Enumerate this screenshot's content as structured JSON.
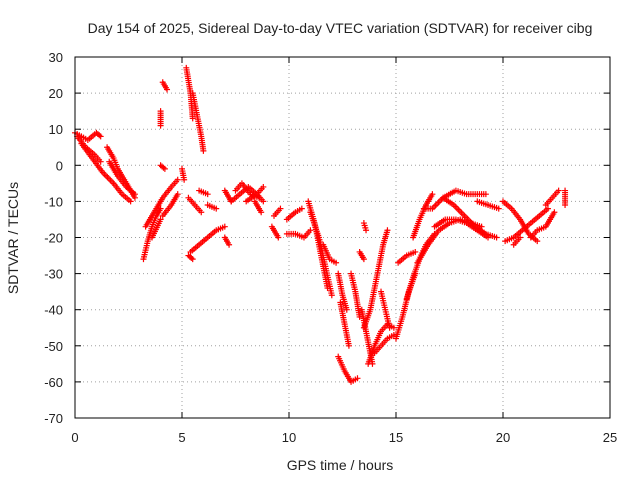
{
  "chart_data": {
    "type": "scatter",
    "title": "Day 154 of 2025, Sidereal Day-to-day VTEC variation (SDTVAR) for receiver cibg",
    "xlabel": "GPS time / hours",
    "ylabel": "SDTVAR / TECUs",
    "xlim": [
      0,
      25
    ],
    "ylim": [
      -70,
      30
    ],
    "xticks": [
      0,
      5,
      10,
      15,
      20,
      25
    ],
    "yticks": [
      30,
      20,
      10,
      0,
      -10,
      -20,
      -30,
      -40,
      -50,
      -60,
      -70
    ],
    "xtick_labels": [
      "0",
      "5",
      "10",
      "15",
      "20",
      "25"
    ],
    "ytick_labels": [
      "30",
      "20",
      "10",
      "0",
      "-10",
      "-20",
      "-30",
      "-40",
      "-50",
      "-60",
      "-70"
    ],
    "grid": true,
    "marker": "+",
    "color": "#ff0000",
    "segments": [
      [
        [
          0.0,
          9
        ],
        [
          0.3,
          8
        ],
        [
          0.6,
          7
        ],
        [
          1.0,
          9
        ],
        [
          1.2,
          8
        ]
      ],
      [
        [
          0.1,
          8
        ],
        [
          0.5,
          5
        ],
        [
          0.9,
          3
        ],
        [
          1.2,
          1
        ]
      ],
      [
        [
          0.3,
          6
        ],
        [
          0.8,
          2
        ],
        [
          1.3,
          -2
        ],
        [
          1.8,
          -5
        ],
        [
          2.2,
          -8
        ],
        [
          2.6,
          -10
        ]
      ],
      [
        [
          1.5,
          5
        ],
        [
          1.8,
          2
        ],
        [
          2.0,
          -1
        ],
        [
          2.3,
          -4
        ],
        [
          2.6,
          -7
        ],
        [
          2.8,
          -9
        ]
      ],
      [
        [
          1.6,
          1
        ],
        [
          2.0,
          -3
        ],
        [
          2.4,
          -6
        ],
        [
          2.8,
          -8
        ]
      ],
      [
        [
          3.2,
          -26
        ],
        [
          3.4,
          -21
        ],
        [
          3.6,
          -17
        ],
        [
          3.8,
          -14
        ],
        [
          4.0,
          -12
        ]
      ],
      [
        [
          3.3,
          -17
        ],
        [
          3.7,
          -13
        ],
        [
          4.1,
          -9
        ],
        [
          4.5,
          -6
        ],
        [
          4.8,
          -4
        ]
      ],
      [
        [
          3.6,
          -20
        ],
        [
          4.0,
          -15
        ]
      ],
      [
        [
          4.0,
          15
        ],
        [
          4.0,
          11
        ]
      ],
      [
        [
          4.1,
          23
        ],
        [
          4.3,
          21
        ]
      ],
      [
        [
          4.0,
          0
        ],
        [
          4.2,
          -1
        ]
      ],
      [
        [
          4.1,
          -14
        ],
        [
          4.5,
          -11
        ],
        [
          4.8,
          -8
        ]
      ],
      [
        [
          5.0,
          -1
        ],
        [
          5.1,
          -4
        ]
      ],
      [
        [
          5.2,
          27
        ],
        [
          5.4,
          20
        ],
        [
          5.5,
          13
        ]
      ],
      [
        [
          5.5,
          20
        ],
        [
          5.7,
          14
        ],
        [
          5.9,
          8
        ],
        [
          6.0,
          4
        ]
      ],
      [
        [
          5.3,
          -9
        ],
        [
          5.6,
          -11
        ],
        [
          5.9,
          -13
        ]
      ],
      [
        [
          5.3,
          -25
        ],
        [
          5.5,
          -26
        ]
      ],
      [
        [
          5.4,
          -24
        ],
        [
          5.8,
          -22
        ],
        [
          6.2,
          -20
        ],
        [
          6.6,
          -18
        ],
        [
          7.0,
          -17
        ]
      ],
      [
        [
          5.8,
          -7
        ],
        [
          6.2,
          -8
        ]
      ],
      [
        [
          6.2,
          -11
        ],
        [
          6.6,
          -12
        ]
      ],
      [
        [
          7.0,
          -7
        ],
        [
          7.3,
          -10
        ]
      ],
      [
        [
          7.0,
          -20
        ],
        [
          7.2,
          -22
        ]
      ],
      [
        [
          7.5,
          -7
        ],
        [
          7.8,
          -5
        ],
        [
          8.2,
          -8
        ],
        [
          8.6,
          -9
        ]
      ],
      [
        [
          7.3,
          -10
        ],
        [
          7.7,
          -8
        ],
        [
          8.1,
          -6
        ],
        [
          8.5,
          -8
        ],
        [
          8.8,
          -10
        ]
      ],
      [
        [
          8.0,
          -10
        ],
        [
          8.5,
          -8
        ],
        [
          8.8,
          -6
        ]
      ],
      [
        [
          8.4,
          -10
        ],
        [
          8.7,
          -13
        ]
      ],
      [
        [
          9.2,
          -17
        ],
        [
          9.5,
          -20
        ]
      ],
      [
        [
          9.3,
          -14
        ],
        [
          9.6,
          -12
        ]
      ],
      [
        [
          9.9,
          -15
        ],
        [
          10.3,
          -13
        ],
        [
          10.6,
          -12
        ]
      ],
      [
        [
          9.9,
          -19
        ],
        [
          10.3,
          -19
        ],
        [
          10.7,
          -20
        ],
        [
          11.0,
          -18
        ]
      ],
      [
        [
          10.9,
          -10
        ],
        [
          11.2,
          -16
        ],
        [
          11.5,
          -25
        ],
        [
          11.8,
          -34
        ]
      ],
      [
        [
          11.0,
          -13
        ],
        [
          11.4,
          -20
        ],
        [
          11.7,
          -28
        ],
        [
          12.0,
          -36
        ]
      ],
      [
        [
          11.6,
          -22
        ],
        [
          11.9,
          -26
        ],
        [
          12.2,
          -27
        ]
      ],
      [
        [
          12.3,
          -30
        ],
        [
          12.5,
          -36
        ],
        [
          12.7,
          -40
        ]
      ],
      [
        [
          12.4,
          -38
        ],
        [
          12.6,
          -44
        ],
        [
          12.8,
          -50
        ]
      ],
      [
        [
          12.3,
          -53
        ],
        [
          12.6,
          -57
        ],
        [
          12.9,
          -60
        ],
        [
          13.2,
          -59
        ]
      ],
      [
        [
          12.9,
          -30
        ],
        [
          13.1,
          -35
        ],
        [
          13.3,
          -42
        ]
      ],
      [
        [
          13.3,
          -24
        ],
        [
          13.5,
          -26
        ]
      ],
      [
        [
          13.5,
          -16
        ],
        [
          13.6,
          -18
        ]
      ],
      [
        [
          13.4,
          -40
        ],
        [
          13.6,
          -46
        ],
        [
          13.8,
          -52
        ],
        [
          13.9,
          -55
        ]
      ],
      [
        [
          13.5,
          -45
        ],
        [
          13.8,
          -40
        ],
        [
          14.0,
          -34
        ],
        [
          14.2,
          -28
        ],
        [
          14.4,
          -22
        ],
        [
          14.6,
          -18
        ]
      ],
      [
        [
          13.7,
          -55
        ],
        [
          14.0,
          -50
        ],
        [
          14.3,
          -46
        ],
        [
          14.6,
          -44
        ],
        [
          14.9,
          -45
        ]
      ],
      [
        [
          14.0,
          -52
        ],
        [
          14.3,
          -50
        ],
        [
          14.6,
          -48
        ],
        [
          14.9,
          -47
        ]
      ],
      [
        [
          14.3,
          -35
        ],
        [
          14.5,
          -40
        ],
        [
          14.7,
          -45
        ]
      ],
      [
        [
          15.0,
          -48
        ],
        [
          15.3,
          -42
        ],
        [
          15.6,
          -35
        ],
        [
          15.9,
          -30
        ]
      ],
      [
        [
          15.5,
          -37
        ],
        [
          15.8,
          -31
        ],
        [
          16.1,
          -26
        ],
        [
          16.4,
          -22
        ],
        [
          16.8,
          -19
        ]
      ],
      [
        [
          15.1,
          -27
        ],
        [
          15.5,
          -25
        ],
        [
          15.9,
          -24
        ]
      ],
      [
        [
          15.8,
          -20
        ],
        [
          16.1,
          -15
        ],
        [
          16.4,
          -11
        ],
        [
          16.7,
          -8
        ]
      ],
      [
        [
          16.0,
          -27
        ],
        [
          16.5,
          -22
        ],
        [
          17.0,
          -18
        ],
        [
          17.5,
          -16
        ],
        [
          18.0,
          -15
        ],
        [
          18.5,
          -16
        ],
        [
          19.0,
          -17
        ]
      ],
      [
        [
          16.3,
          -12
        ],
        [
          16.7,
          -12
        ],
        [
          17.2,
          -9
        ],
        [
          17.7,
          -11
        ],
        [
          18.2,
          -14
        ],
        [
          18.7,
          -17
        ],
        [
          19.2,
          -19
        ],
        [
          19.7,
          -20
        ]
      ],
      [
        [
          16.8,
          -17
        ],
        [
          17.3,
          -15
        ],
        [
          17.8,
          -15
        ],
        [
          18.3,
          -16
        ],
        [
          18.8,
          -18
        ],
        [
          19.3,
          -20
        ]
      ],
      [
        [
          17.2,
          -9
        ],
        [
          17.8,
          -7
        ],
        [
          18.3,
          -8
        ],
        [
          18.8,
          -8
        ],
        [
          19.2,
          -8
        ]
      ],
      [
        [
          18.8,
          -10
        ],
        [
          19.3,
          -11
        ],
        [
          19.8,
          -12
        ]
      ],
      [
        [
          20.0,
          -10
        ],
        [
          20.4,
          -12
        ],
        [
          20.8,
          -15
        ],
        [
          21.2,
          -19
        ],
        [
          21.6,
          -21
        ]
      ],
      [
        [
          20.1,
          -21
        ],
        [
          20.5,
          -20
        ],
        [
          20.9,
          -18
        ],
        [
          21.3,
          -16
        ],
        [
          21.7,
          -14
        ],
        [
          22.1,
          -12
        ]
      ],
      [
        [
          20.5,
          -22
        ],
        [
          20.8,
          -20
        ]
      ],
      [
        [
          21.3,
          -20
        ],
        [
          21.6,
          -18
        ],
        [
          22.0,
          -17
        ],
        [
          22.4,
          -13
        ]
      ],
      [
        [
          22.0,
          -11
        ],
        [
          22.3,
          -9
        ],
        [
          22.6,
          -7
        ]
      ],
      [
        [
          22.9,
          -7
        ],
        [
          22.9,
          -11
        ]
      ]
    ]
  }
}
